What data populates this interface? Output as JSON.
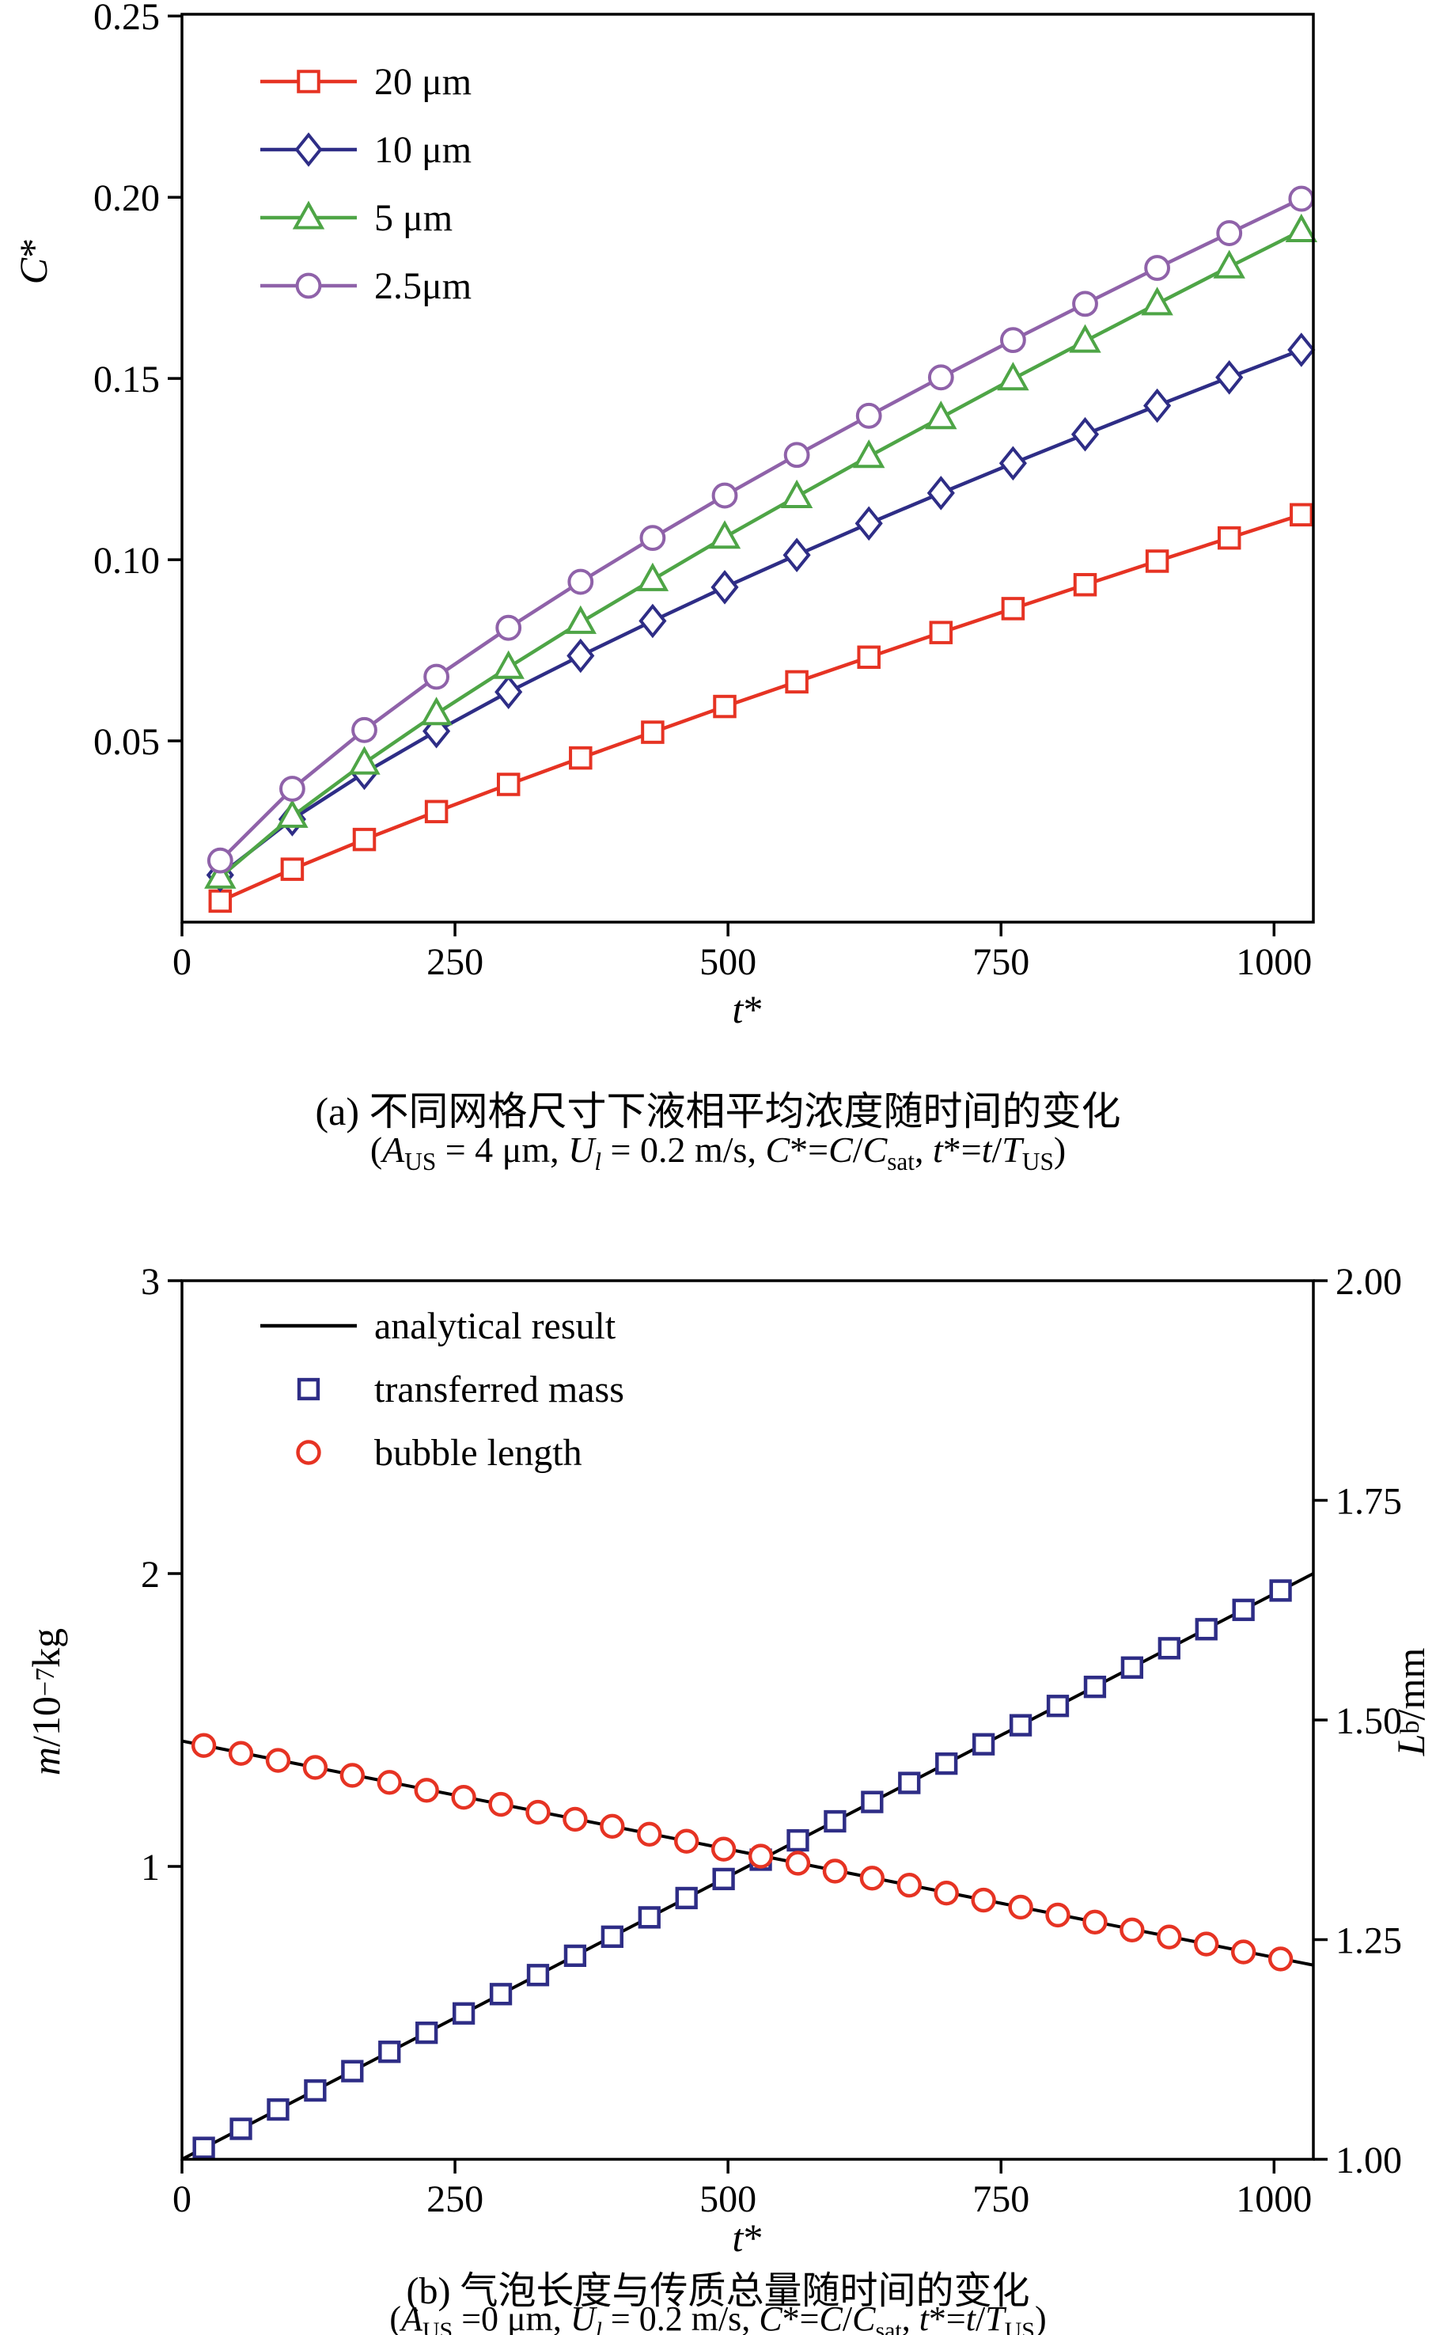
{
  "chart_data": [
    {
      "type": "line",
      "caption": {
        "line1": "(a) 不同网格尺寸下液相平均浓度随时间的变化",
        "line2_segments": [
          {
            "t": "("
          },
          {
            "t": "A",
            "i": true
          },
          {
            "t": "US",
            "sub": true
          },
          {
            "t": " = 4 μm, "
          },
          {
            "t": "U",
            "i": true
          },
          {
            "t": "l",
            "i": true,
            "sub": true
          },
          {
            "t": " = 0.2 m/s, "
          },
          {
            "t": "C",
            "i": true
          },
          {
            "t": "*="
          },
          {
            "t": "C",
            "i": true
          },
          {
            "t": "/"
          },
          {
            "t": "C",
            "i": true
          },
          {
            "t": "sat",
            "sub": true
          },
          {
            "t": ", "
          },
          {
            "t": "t",
            "i": true
          },
          {
            "t": "*="
          },
          {
            "t": "t",
            "i": true
          },
          {
            "t": "/"
          },
          {
            "t": "T",
            "i": true
          },
          {
            "t": "US",
            "sub": true
          },
          {
            "t": ")"
          }
        ]
      },
      "xlabel": "t*",
      "ylabel": "C*",
      "xlabel_segments": [
        {
          "t": "t",
          "i": true
        },
        {
          "t": "*"
        }
      ],
      "ylabel_segments": [
        {
          "t": "C",
          "i": true
        },
        {
          "t": "*"
        }
      ],
      "xlim": [
        0,
        1036
      ],
      "ylim": [
        0,
        0.2505
      ],
      "xticks": [
        0,
        250,
        500,
        750,
        1000
      ],
      "xtick_labels": [
        "0",
        "250",
        "500",
        "750",
        "1000"
      ],
      "yticks": [
        0.05,
        0.1,
        0.15,
        0.2,
        0.25
      ],
      "ytick_labels": [
        "0.05",
        "0.10",
        "0.15",
        "0.20",
        "0.25"
      ],
      "grid": false,
      "legend_position": "top-left",
      "x": [
        35,
        101,
        167,
        233,
        299,
        365,
        431,
        497,
        563,
        629,
        695,
        761,
        827,
        893,
        959,
        1025
      ],
      "series": [
        {
          "name": "20 μm",
          "color": "#e63323",
          "marker": "square",
          "y": [
            0.0058,
            0.0146,
            0.0228,
            0.0305,
            0.038,
            0.0453,
            0.0524,
            0.0595,
            0.0663,
            0.0731,
            0.0799,
            0.0865,
            0.0931,
            0.0996,
            0.106,
            0.1124
          ]
        },
        {
          "name": "10 μm",
          "color": "#2e2d86",
          "marker": "diamond",
          "y": [
            0.013,
            0.0284,
            0.0412,
            0.0527,
            0.0635,
            0.0735,
            0.0831,
            0.0924,
            0.1013,
            0.11,
            0.1184,
            0.1266,
            0.1346,
            0.1425,
            0.1503,
            0.1579
          ]
        },
        {
          "name": "5 μm",
          "color": "#4ea546",
          "marker": "triangle",
          "y": [
            0.0124,
            0.0292,
            0.0439,
            0.0575,
            0.0703,
            0.0827,
            0.0945,
            0.1062,
            0.1174,
            0.1285,
            0.1392,
            0.1499,
            0.1603,
            0.1706,
            0.1808,
            0.1908
          ]
        },
        {
          "name": "2.5μm",
          "color": "#8f62a9",
          "marker": "circle",
          "y": [
            0.017,
            0.0368,
            0.053,
            0.0677,
            0.0812,
            0.0939,
            0.106,
            0.1177,
            0.1289,
            0.1397,
            0.1503,
            0.1606,
            0.1706,
            0.1805,
            0.1901,
            0.1996
          ]
        }
      ]
    },
    {
      "type": "line+scatter",
      "caption": {
        "line1": "(b) 气泡长度与传质总量随时间的变化",
        "line2_segments": [
          {
            "t": "("
          },
          {
            "t": "A",
            "i": true
          },
          {
            "t": "US",
            "sub": true
          },
          {
            "t": " =0 μm, "
          },
          {
            "t": "U",
            "i": true
          },
          {
            "t": "l",
            "i": true,
            "sub": true
          },
          {
            "t": " = 0.2 m/s, "
          },
          {
            "t": "C",
            "i": true
          },
          {
            "t": "*="
          },
          {
            "t": "C",
            "i": true
          },
          {
            "t": "/"
          },
          {
            "t": "C",
            "i": true
          },
          {
            "t": "sat",
            "sub": true
          },
          {
            "t": ", "
          },
          {
            "t": "t",
            "i": true
          },
          {
            "t": "*="
          },
          {
            "t": "t",
            "i": true
          },
          {
            "t": "/"
          },
          {
            "t": "T",
            "i": true
          },
          {
            "t": "US",
            "sub": true
          },
          {
            "t": ")"
          }
        ]
      },
      "xlabel": "t*",
      "ylabel_left": "m/10−7kg",
      "ylabel_right": "Lb/mm",
      "xlabel_segments": [
        {
          "t": "t",
          "i": true
        },
        {
          "t": "*"
        }
      ],
      "ylabel_segments": [
        {
          "t": "m",
          "i": true
        },
        {
          "t": "/10"
        },
        {
          "t": "−7",
          "sup": true
        },
        {
          "t": "kg"
        }
      ],
      "ylabel_right_segments": [
        {
          "t": "L",
          "i": true
        },
        {
          "t": "b",
          "sub": true
        },
        {
          "t": "/mm"
        }
      ],
      "xlim": [
        0,
        1036
      ],
      "ylim_left": [
        0,
        3
      ],
      "ylim_right": [
        1.0,
        2.0
      ],
      "xticks": [
        0,
        250,
        500,
        750,
        1000
      ],
      "xtick_labels": [
        "0",
        "250",
        "500",
        "750",
        "1000"
      ],
      "yticks": [
        1,
        2,
        3
      ],
      "ytick_labels": [
        "1",
        "2",
        "3"
      ],
      "yticks_right": [
        1.0,
        1.25,
        1.5,
        1.75,
        2.0
      ],
      "ytick_labels_right": [
        "1.00",
        "1.25",
        "1.50",
        "1.75",
        "2.00"
      ],
      "grid": false,
      "legend_position": "top-left",
      "series": [
        {
          "name": "analytical result",
          "color": "#000000",
          "marker": "none",
          "line": true,
          "axis": "left",
          "x": [
            0,
            1036
          ],
          "y": [
            0,
            2.0
          ]
        },
        {
          "name": "analytical result (bubble length)",
          "color": "#000000",
          "marker": "none",
          "line": true,
          "axis": "right",
          "in_legend": false,
          "x": [
            0,
            1036
          ],
          "y": [
            1.476,
            1.221
          ]
        },
        {
          "name": "transferred mass",
          "color": "#2e2d86",
          "marker": "square",
          "line": false,
          "axis": "left",
          "x": [
            20,
            54,
            88,
            122,
            156,
            190,
            224,
            258,
            292,
            326,
            360,
            394,
            428,
            462,
            496,
            530,
            564,
            598,
            632,
            666,
            700,
            734,
            768,
            802,
            836,
            870,
            904,
            938,
            972,
            1006
          ],
          "y": [
            0.039,
            0.104,
            0.17,
            0.235,
            0.301,
            0.367,
            0.432,
            0.498,
            0.564,
            0.629,
            0.695,
            0.76,
            0.826,
            0.892,
            0.957,
            1.023,
            1.089,
            1.154,
            1.22,
            1.285,
            1.351,
            1.417,
            1.482,
            1.548,
            1.613,
            1.679,
            1.745,
            1.81,
            1.876,
            1.942
          ]
        },
        {
          "name": "bubble length",
          "color": "#e63323",
          "marker": "circle",
          "line": false,
          "axis": "right",
          "x": [
            20,
            54,
            88,
            122,
            156,
            190,
            224,
            258,
            292,
            326,
            360,
            394,
            428,
            462,
            496,
            530,
            564,
            598,
            632,
            666,
            700,
            734,
            768,
            802,
            836,
            870,
            904,
            938,
            972,
            1006
          ],
          "y": [
            1.471,
            1.462,
            1.454,
            1.446,
            1.437,
            1.429,
            1.42,
            1.412,
            1.404,
            1.395,
            1.387,
            1.379,
            1.37,
            1.362,
            1.353,
            1.345,
            1.337,
            1.328,
            1.32,
            1.312,
            1.303,
            1.295,
            1.287,
            1.278,
            1.27,
            1.261,
            1.253,
            1.245,
            1.236,
            1.228
          ]
        }
      ]
    }
  ]
}
